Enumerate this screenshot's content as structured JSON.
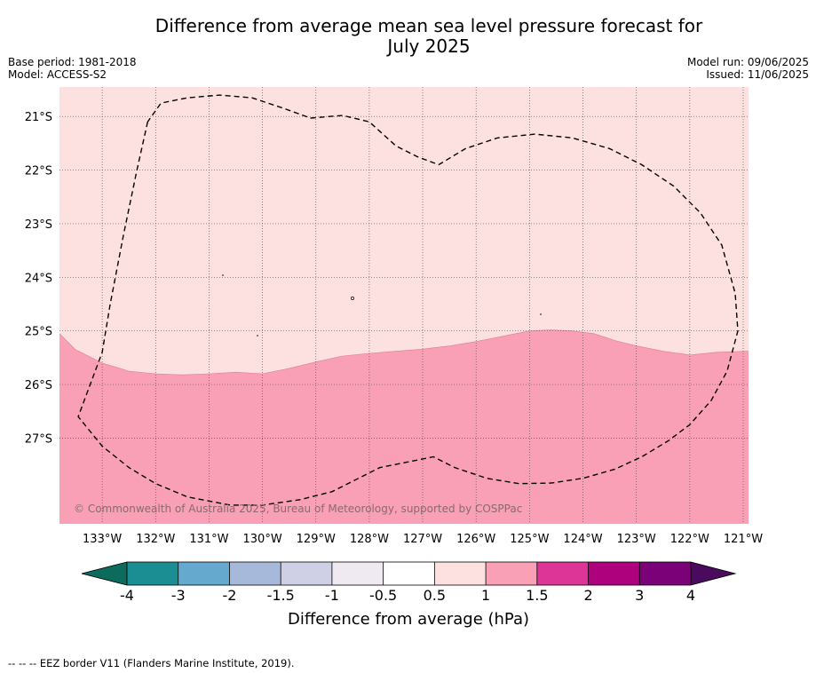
{
  "header": {
    "title_line1": "Difference from average mean sea level pressure forecast for",
    "title_line2": "July 2025",
    "base_period": "Base period: 1981-2018",
    "model": "Model: ACCESS-S2",
    "model_run": "Model run: 09/06/2025",
    "issued": "Issued: 11/06/2025"
  },
  "map": {
    "longitude_labels": [
      "133°W",
      "132°W",
      "131°W",
      "130°W",
      "129°W",
      "128°W",
      "127°W",
      "126°W",
      "125°W",
      "124°W",
      "123°W",
      "122°W",
      "121°W"
    ],
    "longitudes": [
      -133,
      -132,
      -131,
      -130,
      -129,
      -128,
      -127,
      -126,
      -125,
      -124,
      -123,
      -122,
      -121
    ],
    "latitude_labels": [
      "21°S",
      "22°S",
      "23°S",
      "24°S",
      "25°S",
      "26°S",
      "27°S"
    ],
    "latitudes": [
      -21,
      -22,
      -23,
      -24,
      -25,
      -26,
      -27
    ],
    "lon_range": [
      -133.8,
      -120.9
    ],
    "lat_range": [
      -28.6,
      -20.45
    ],
    "copyright": "© Commonwealth of Australia 2025, Bureau of Meteorology, supported by COSPPac",
    "fill_colors": {
      "band_0_5_to_1": "#fde0e0",
      "band_1_to_1_5": "#f9a0b6"
    },
    "boundary_1hPa": [
      [
        -133.8,
        -25.05
      ],
      [
        -133.5,
        -25.35
      ],
      [
        -133.0,
        -25.6
      ],
      [
        -132.5,
        -25.75
      ],
      [
        -132.0,
        -25.8
      ],
      [
        -131.5,
        -25.82
      ],
      [
        -131.0,
        -25.8
      ],
      [
        -130.5,
        -25.77
      ],
      [
        -130.0,
        -25.8
      ],
      [
        -129.5,
        -25.7
      ],
      [
        -129.0,
        -25.58
      ],
      [
        -128.5,
        -25.47
      ],
      [
        -128.0,
        -25.42
      ],
      [
        -127.5,
        -25.38
      ],
      [
        -127.0,
        -25.34
      ],
      [
        -126.5,
        -25.28
      ],
      [
        -126.0,
        -25.2
      ],
      [
        -125.5,
        -25.1
      ],
      [
        -125.0,
        -25.0
      ],
      [
        -124.6,
        -24.98
      ],
      [
        -124.2,
        -25.0
      ],
      [
        -123.8,
        -25.05
      ],
      [
        -123.4,
        -25.18
      ],
      [
        -123.0,
        -25.28
      ],
      [
        -122.5,
        -25.38
      ],
      [
        -122.0,
        -25.45
      ],
      [
        -121.5,
        -25.4
      ],
      [
        -120.9,
        -25.38
      ]
    ],
    "eez_border": [
      [
        -132.15,
        -21.1
      ],
      [
        -132.35,
        -22.0
      ],
      [
        -132.6,
        -23.2
      ],
      [
        -132.85,
        -24.5
      ],
      [
        -133.0,
        -25.4
      ],
      [
        -133.45,
        -26.6
      ],
      [
        -133.0,
        -27.15
      ],
      [
        -132.5,
        -27.55
      ],
      [
        -132.0,
        -27.85
      ],
      [
        -131.4,
        -28.1
      ],
      [
        -130.6,
        -28.25
      ],
      [
        -130.0,
        -28.25
      ],
      [
        -129.3,
        -28.15
      ],
      [
        -128.7,
        -28.0
      ],
      [
        -128.3,
        -27.8
      ],
      [
        -127.8,
        -27.55
      ],
      [
        -127.3,
        -27.45
      ],
      [
        -126.8,
        -27.35
      ],
      [
        -126.4,
        -27.55
      ],
      [
        -125.8,
        -27.75
      ],
      [
        -125.2,
        -27.85
      ],
      [
        -124.6,
        -27.84
      ],
      [
        -124.0,
        -27.75
      ],
      [
        -123.4,
        -27.58
      ],
      [
        -122.9,
        -27.35
      ],
      [
        -122.4,
        -27.05
      ],
      [
        -122.0,
        -26.75
      ],
      [
        -121.6,
        -26.3
      ],
      [
        -121.3,
        -25.75
      ],
      [
        -121.1,
        -25.0
      ],
      [
        -121.15,
        -24.3
      ],
      [
        -121.4,
        -23.4
      ],
      [
        -121.8,
        -22.8
      ],
      [
        -122.3,
        -22.3
      ],
      [
        -122.9,
        -21.9
      ],
      [
        -123.5,
        -21.6
      ],
      [
        -124.2,
        -21.4
      ],
      [
        -124.9,
        -21.33
      ],
      [
        -125.6,
        -21.4
      ],
      [
        -126.2,
        -21.6
      ],
      [
        -126.7,
        -21.9
      ],
      [
        -127.1,
        -21.75
      ],
      [
        -127.5,
        -21.55
      ],
      [
        -128.0,
        -21.1
      ],
      [
        -128.5,
        -20.98
      ],
      [
        -129.1,
        -21.03
      ],
      [
        -129.6,
        -20.85
      ],
      [
        -130.2,
        -20.65
      ],
      [
        -130.8,
        -20.6
      ],
      [
        -131.4,
        -20.65
      ],
      [
        -131.9,
        -20.75
      ],
      [
        -132.15,
        -21.1
      ]
    ]
  },
  "colorbar": {
    "label": "Difference from average (hPa)",
    "ticks": [
      "-4",
      "-3",
      "-2",
      "-1.5",
      "-1",
      "-0.5",
      "0.5",
      "1",
      "1.5",
      "2",
      "3",
      "4"
    ],
    "low_extend_color": "#0d6b5e",
    "high_extend_color": "#4a0a5e",
    "colors": [
      "#1b8e94",
      "#65a9cf",
      "#a6b9da",
      "#cfd0e6",
      "#efe9f1",
      "#ffffff",
      "#fde0e0",
      "#f9a0b6",
      "#dd3497",
      "#ae017e",
      "#7a0177"
    ]
  },
  "footnote": "--  --  -- EEZ border V11 (Flanders Marine Institute, 2019)."
}
